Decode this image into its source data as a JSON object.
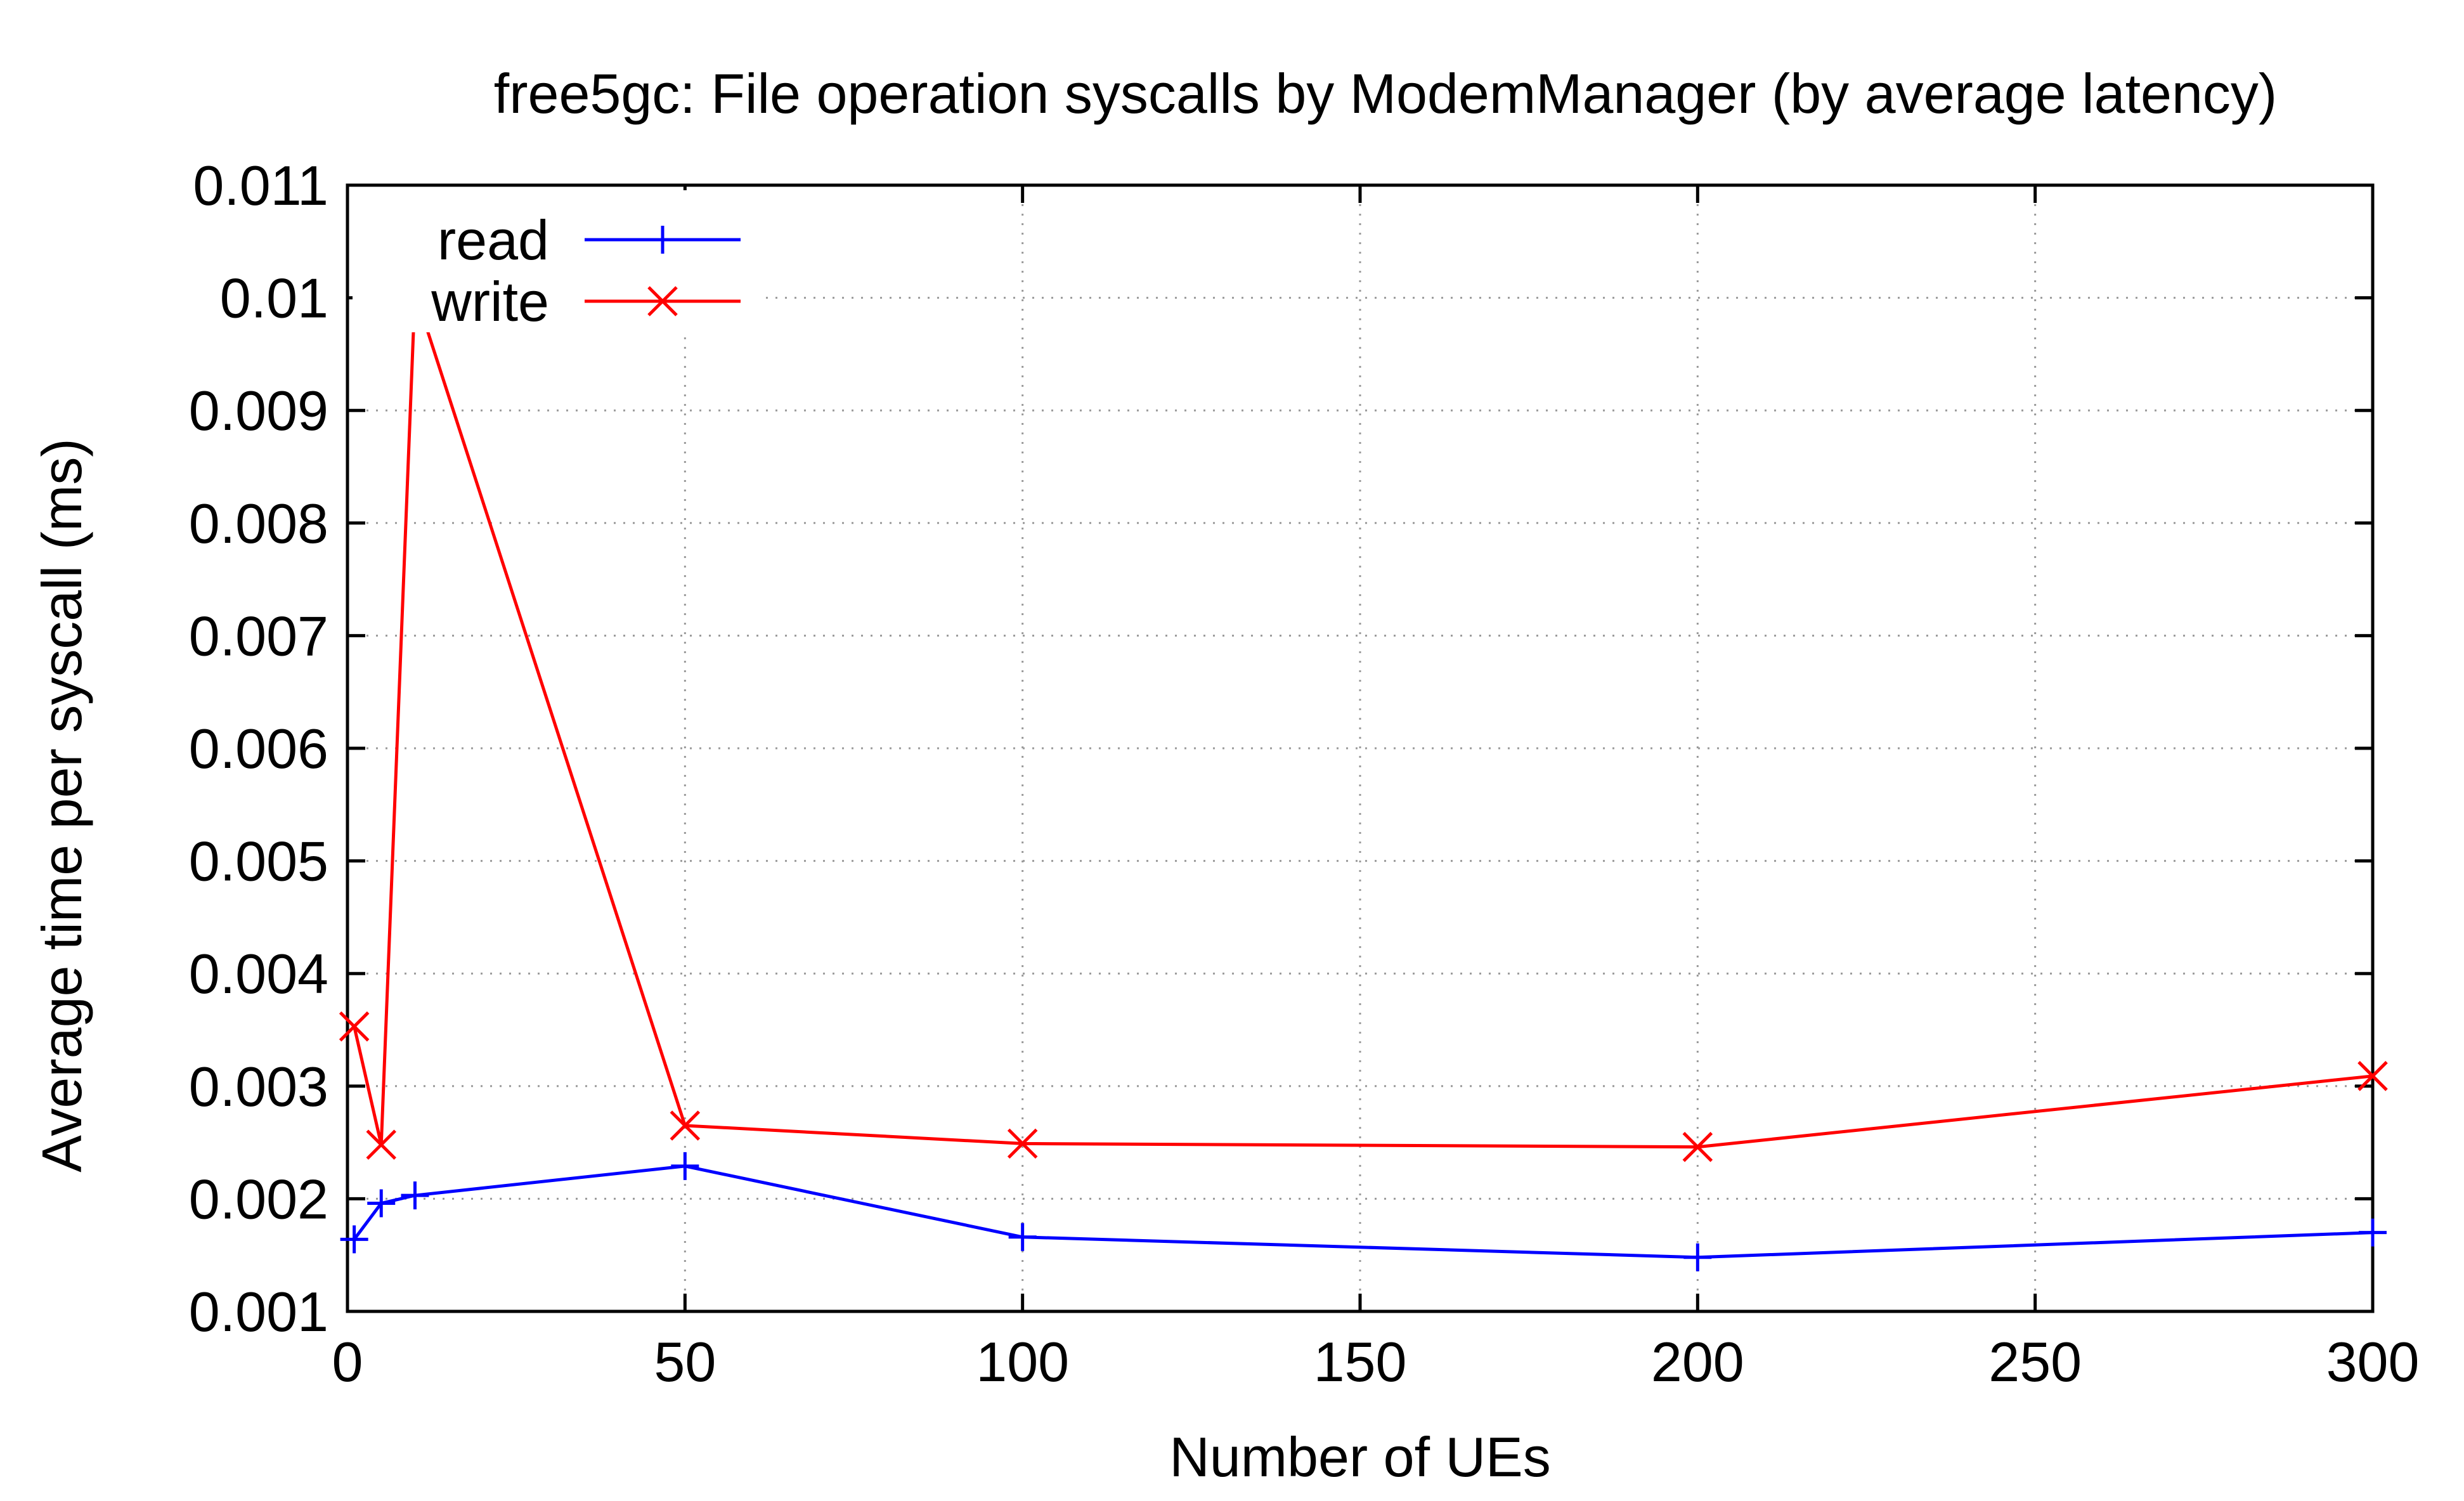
{
  "chart_data": {
    "type": "line",
    "title": "free5gc: File operation syscalls by ModemManager (by average latency)",
    "xlabel": "Number of UEs",
    "ylabel": "Average time per syscall (ms)",
    "xlim": [
      0,
      300
    ],
    "ylim": [
      0.001,
      0.011
    ],
    "xticks": [
      "0",
      "50",
      "100",
      "150",
      "200",
      "250",
      "300"
    ],
    "yticks": [
      "0.001",
      "0.002",
      "0.003",
      "0.004",
      "0.005",
      "0.006",
      "0.007",
      "0.008",
      "0.009",
      "0.01",
      "0.011"
    ],
    "grid": true,
    "legend_position": "top-left",
    "series": [
      {
        "name": "read",
        "color": "#0000ff",
        "marker": "plus",
        "x": [
          1,
          5,
          10,
          50,
          100,
          200,
          300
        ],
        "y": [
          0.00164,
          0.00196,
          0.00203,
          0.00229,
          0.00166,
          0.00148,
          0.0017
        ]
      },
      {
        "name": "write",
        "color": "#ff0000",
        "marker": "cross",
        "x": [
          1,
          5,
          10,
          50,
          100,
          200,
          300
        ],
        "y": [
          0.00353,
          0.00248,
          0.01005,
          0.00265,
          0.00249,
          0.00246,
          0.00309
        ]
      }
    ]
  }
}
